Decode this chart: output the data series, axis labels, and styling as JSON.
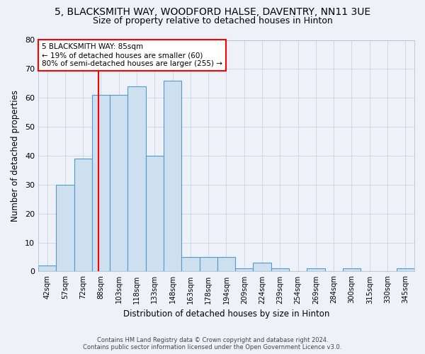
{
  "title": "5, BLACKSMITH WAY, WOODFORD HALSE, DAVENTRY, NN11 3UE",
  "subtitle": "Size of property relative to detached houses in Hinton",
  "xlabel": "Distribution of detached houses by size in Hinton",
  "ylabel": "Number of detached properties",
  "footer_line1": "Contains HM Land Registry data © Crown copyright and database right 2024.",
  "footer_line2": "Contains public sector information licensed under the Open Government Licence v3.0.",
  "categories": [
    "42sqm",
    "57sqm",
    "72sqm",
    "88sqm",
    "103sqm",
    "118sqm",
    "133sqm",
    "148sqm",
    "163sqm",
    "178sqm",
    "194sqm",
    "209sqm",
    "224sqm",
    "239sqm",
    "254sqm",
    "269sqm",
    "284sqm",
    "300sqm",
    "315sqm",
    "330sqm",
    "345sqm"
  ],
  "values": [
    2,
    30,
    39,
    61,
    61,
    64,
    40,
    66,
    5,
    5,
    5,
    1,
    3,
    1,
    0,
    1,
    0,
    1,
    0,
    0,
    1
  ],
  "bar_color": "#cce0f0",
  "bar_edge_color": "#5599cc",
  "property_label": "5 BLACKSMITH WAY: 85sqm",
  "annotation_line1": "← 19% of detached houses are smaller (60)",
  "annotation_line2": "80% of semi-detached houses are larger (255) →",
  "annotation_box_color": "white",
  "annotation_box_edge_color": "red",
  "vline_color": "red",
  "vline_x_index": 2.867,
  "ylim": [
    0,
    80
  ],
  "yticks": [
    0,
    10,
    20,
    30,
    40,
    50,
    60,
    70,
    80
  ],
  "title_fontsize": 10,
  "subtitle_fontsize": 9,
  "bg_color": "#eef2f8",
  "grid_color": "#d0d8e8",
  "plot_bg_color": "#eef2f8"
}
